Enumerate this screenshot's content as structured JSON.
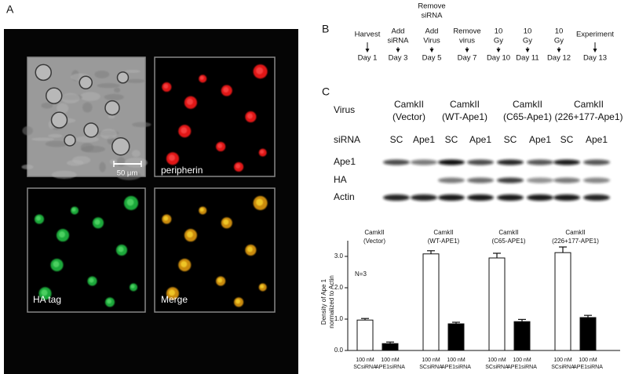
{
  "panel_a": {
    "label": "A",
    "scale_bar": "50 μm",
    "channels": [
      "peripherin",
      "HA tag",
      "Merge"
    ]
  },
  "panel_b": {
    "label": "B",
    "steps": [
      {
        "event": [
          "Harvest"
        ],
        "day": "Day 1"
      },
      {
        "event": [
          "Add",
          "siRNA"
        ],
        "day": "Day 3"
      },
      {
        "note": [
          "Remove",
          "siRNA"
        ],
        "event": [
          "Add",
          "Virus"
        ],
        "day": "Day 5"
      },
      {
        "event": [
          "Remove",
          "virus"
        ],
        "day": "Day 7"
      },
      {
        "event": [
          "10",
          "Gy"
        ],
        "day": "Day 10"
      },
      {
        "event": [
          "10",
          "Gy"
        ],
        "day": "Day 11"
      },
      {
        "event": [
          "10",
          "Gy"
        ],
        "day": "Day 12"
      },
      {
        "event": [
          "Experiment"
        ],
        "day": "Day 13"
      }
    ]
  },
  "panel_c": {
    "label": "C",
    "virus_label": "Virus",
    "sirna_label": "siRNA",
    "viruses": [
      [
        "CamkII",
        "(Vector)"
      ],
      [
        "CamkII",
        "(WT-Ape1)"
      ],
      [
        "CamkII",
        "(C65-Ape1)"
      ],
      [
        "CamkII",
        "(226+177-Ape1)"
      ]
    ],
    "sirna": [
      "SC",
      "Ape1",
      "SC",
      "Ape1",
      "SC",
      "Ape1",
      "SC",
      "Ape1"
    ],
    "bands": [
      "Ape1",
      "HA",
      "Actin"
    ]
  },
  "chart_data": {
    "type": "bar",
    "groups": [
      [
        "CamkII",
        "(Vector)"
      ],
      [
        "CamkII",
        "(WT-APE1)"
      ],
      [
        "CamkII",
        "(C65-APE1)"
      ],
      [
        "CamkII",
        "(226+177-APE1)"
      ]
    ],
    "categories": [
      [
        "100 nM",
        "SCsiRNA"
      ],
      [
        "100 nM",
        "APE1siRNA"
      ],
      [
        "100 nM",
        "SCsiRNA"
      ],
      [
        "100 nM",
        "APE1siRNA"
      ],
      [
        "100 nM",
        "SCsiRNA"
      ],
      [
        "100 nM",
        "APE1siRNA"
      ],
      [
        "100 nM",
        "SCsiRNA"
      ],
      [
        "100 nM",
        "APE1siRNA"
      ]
    ],
    "values": [
      0.97,
      0.22,
      3.08,
      0.85,
      2.95,
      0.92,
      3.12,
      1.05
    ],
    "errors": [
      0.05,
      0.05,
      0.1,
      0.05,
      0.15,
      0.07,
      0.18,
      0.07
    ],
    "colors": [
      "#ffffff",
      "#000000",
      "#ffffff",
      "#000000",
      "#ffffff",
      "#000000",
      "#ffffff",
      "#000000"
    ],
    "ylabel": [
      "Density of Ape 1",
      "normalized to  Actin"
    ],
    "annotation": "N=3",
    "ylim": [
      0,
      3.5
    ],
    "yticks": [
      {
        "value": 0,
        "label": "0.0"
      },
      {
        "value": 1,
        "label": "1.0"
      },
      {
        "value": 2,
        "label": "2.0"
      },
      {
        "value": 3,
        "label": "3.0"
      }
    ]
  }
}
